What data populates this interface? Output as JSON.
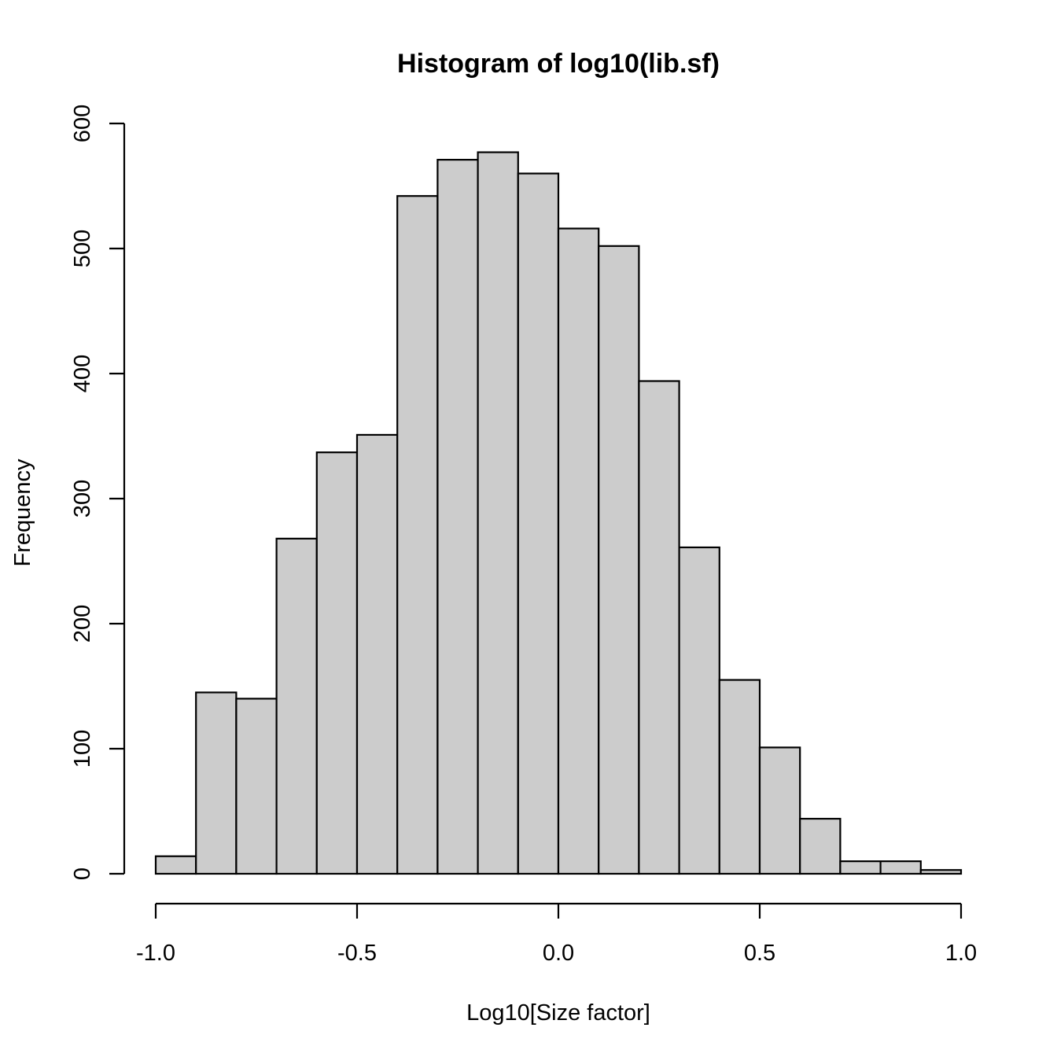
{
  "chart_data": {
    "type": "bar",
    "title": "Histogram of log10(lib.sf)",
    "xlabel": "Log10[Size factor]",
    "ylabel": "Frequency",
    "xlim": [
      -1.0,
      1.0
    ],
    "ylim": [
      0,
      600
    ],
    "x_ticks": [
      -1.0,
      -0.5,
      0.0,
      0.5,
      1.0
    ],
    "x_tick_labels": [
      "-1.0",
      "-0.5",
      "0.0",
      "0.5",
      "1.0"
    ],
    "y_ticks": [
      0,
      100,
      200,
      300,
      400,
      500,
      600
    ],
    "y_tick_labels": [
      "0",
      "100",
      "200",
      "300",
      "400",
      "500",
      "600"
    ],
    "bins": [
      {
        "x0": -1.0,
        "x1": -0.9,
        "count": 14
      },
      {
        "x0": -0.9,
        "x1": -0.8,
        "count": 145
      },
      {
        "x0": -0.8,
        "x1": -0.7,
        "count": 140
      },
      {
        "x0": -0.7,
        "x1": -0.6,
        "count": 268
      },
      {
        "x0": -0.6,
        "x1": -0.5,
        "count": 337
      },
      {
        "x0": -0.5,
        "x1": -0.4,
        "count": 351
      },
      {
        "x0": -0.4,
        "x1": -0.3,
        "count": 542
      },
      {
        "x0": -0.3,
        "x1": -0.2,
        "count": 571
      },
      {
        "x0": -0.2,
        "x1": -0.1,
        "count": 577
      },
      {
        "x0": -0.1,
        "x1": 0.0,
        "count": 560
      },
      {
        "x0": 0.0,
        "x1": 0.1,
        "count": 516
      },
      {
        "x0": 0.1,
        "x1": 0.2,
        "count": 502
      },
      {
        "x0": 0.2,
        "x1": 0.3,
        "count": 394
      },
      {
        "x0": 0.3,
        "x1": 0.4,
        "count": 261
      },
      {
        "x0": 0.4,
        "x1": 0.5,
        "count": 155
      },
      {
        "x0": 0.5,
        "x1": 0.6,
        "count": 101
      },
      {
        "x0": 0.6,
        "x1": 0.7,
        "count": 44
      },
      {
        "x0": 0.7,
        "x1": 0.8,
        "count": 10
      },
      {
        "x0": 0.8,
        "x1": 0.9,
        "count": 10
      },
      {
        "x0": 0.9,
        "x1": 1.0,
        "count": 3
      }
    ],
    "bar_fill": "#cccccc",
    "bar_stroke": "#000000",
    "grid": false,
    "legend": "none"
  }
}
